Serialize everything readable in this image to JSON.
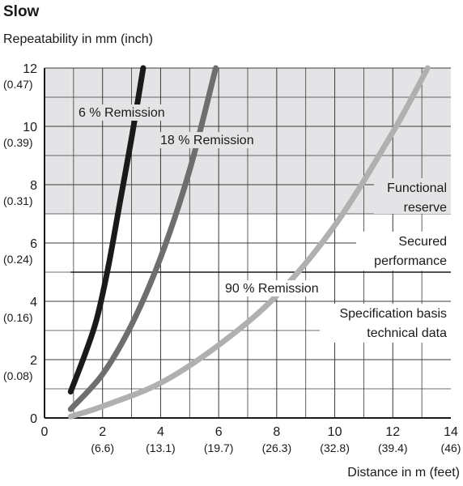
{
  "chart_data": {
    "type": "line",
    "title": "Slow",
    "ylabel": "Repeatability in mm (inch)",
    "xlabel": "Distance in m (feet)",
    "xlim": [
      0,
      14
    ],
    "ylim": [
      0,
      12
    ],
    "grid": true,
    "x_ticks": [
      {
        "value": 0,
        "label": "0",
        "sub": ""
      },
      {
        "value": 2,
        "label": "2",
        "sub": "(6.6)"
      },
      {
        "value": 4,
        "label": "4",
        "sub": "(13.1)"
      },
      {
        "value": 6,
        "label": "6",
        "sub": "(19.7)"
      },
      {
        "value": 8,
        "label": "8",
        "sub": "(26.3)"
      },
      {
        "value": 10,
        "label": "10",
        "sub": "(32.8)"
      },
      {
        "value": 12,
        "label": "12",
        "sub": "(39.4)"
      },
      {
        "value": 14,
        "label": "14",
        "sub": "(46)"
      }
    ],
    "y_ticks": [
      {
        "value": 0,
        "label": "0",
        "sub": ""
      },
      {
        "value": 2,
        "label": "2",
        "sub": "(0.08)"
      },
      {
        "value": 4,
        "label": "4",
        "sub": "(0.16)"
      },
      {
        "value": 6,
        "label": "6",
        "sub": "(0.24)"
      },
      {
        "value": 8,
        "label": "8",
        "sub": "(0.31)"
      },
      {
        "value": 10,
        "label": "10",
        "sub": "(0.39)"
      },
      {
        "value": 12,
        "label": "12",
        "sub": "(0.47)"
      }
    ],
    "series": [
      {
        "name": "6 % Remission",
        "color": "#1a1a1a",
        "x": [
          0.9,
          1.4,
          1.8,
          2.2,
          2.6,
          3.0,
          3.4
        ],
        "y": [
          0.9,
          2.2,
          3.4,
          5.2,
          7.4,
          9.6,
          12.0
        ]
      },
      {
        "name": "18 % Remission",
        "color": "#6e6e6e",
        "x": [
          0.9,
          2.0,
          3.0,
          4.0,
          5.0,
          5.9
        ],
        "y": [
          0.3,
          1.5,
          3.2,
          5.5,
          8.5,
          12.0
        ]
      },
      {
        "name": "90 % Remission",
        "color": "#b0b0b0",
        "x": [
          0.9,
          2.0,
          4.0,
          6.0,
          8.0,
          10.0,
          12.0,
          13.2
        ],
        "y": [
          0.05,
          0.4,
          1.2,
          2.5,
          4.2,
          6.6,
          9.8,
          12.0
        ]
      }
    ],
    "bands": [
      {
        "label": "Functional reserve",
        "y_from": 7,
        "y_to": 12,
        "color": "#e4e4e6"
      },
      {
        "label": "Secured performance",
        "y_from": 5,
        "y_to": 7,
        "color": "#ffffff"
      },
      {
        "label": "Specification basis technical data",
        "y_from": 0,
        "y_to": 5,
        "color": "#ffffff"
      }
    ],
    "annotations": [
      {
        "text": "6 % Remission",
        "series": 0
      },
      {
        "text": "18 % Remission",
        "series": 1
      },
      {
        "text": "90 % Remission",
        "series": 2
      },
      {
        "text": "Functional",
        "band": 0,
        "line": 0
      },
      {
        "text": "reserve",
        "band": 0,
        "line": 1
      },
      {
        "text": "Secured",
        "band": 1,
        "line": 0
      },
      {
        "text": "performance",
        "band": 1,
        "line": 1
      },
      {
        "text": "Specification basis",
        "band": 2,
        "line": 0
      },
      {
        "text": "technical data",
        "band": 2,
        "line": 1
      }
    ]
  }
}
